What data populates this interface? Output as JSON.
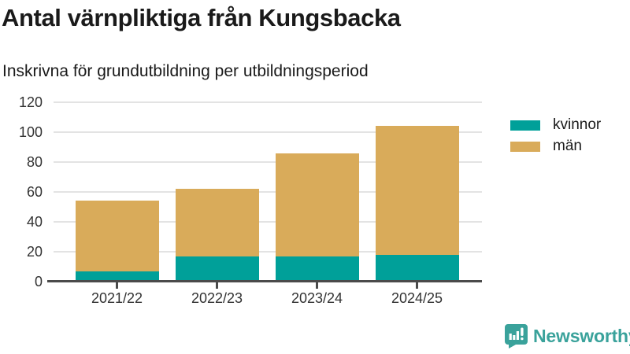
{
  "title": "Antal värnpliktiga från Kungsbacka",
  "subtitle": "Inskrivna för grundutbildning per utbildningsperiod",
  "chart_data": {
    "type": "bar",
    "stacked": true,
    "title": "Antal värnpliktiga från Kungsbacka",
    "subtitle": "Inskrivna för grundutbildning per utbildningsperiod",
    "categories": [
      "2021/22",
      "2022/23",
      "2023/24",
      "2024/25"
    ],
    "series": [
      {
        "name": "kvinnor",
        "color": "#00a099",
        "values": [
          7,
          17,
          17,
          18
        ]
      },
      {
        "name": "män",
        "color": "#d9ab5a",
        "values": [
          47,
          45,
          69,
          86
        ]
      }
    ],
    "stack_totals": [
      54,
      62,
      86,
      104
    ],
    "xlabel": "",
    "ylabel": "",
    "ylim": [
      0,
      120
    ],
    "yticks": [
      0,
      20,
      40,
      60,
      80,
      100,
      120
    ],
    "grid": true,
    "legend_position": "right-top"
  },
  "legend": {
    "items": [
      {
        "label": "kvinnor",
        "color": "#00a099"
      },
      {
        "label": "män",
        "color": "#d9ab5a"
      }
    ]
  },
  "branding": {
    "logo_text": "Newsworthy",
    "logo_icon": "bar-chart-speech-bubble-icon",
    "logo_color": "#3aa29b"
  },
  "colors": {
    "kvinnor": "#00a099",
    "man": "#d9ab5a",
    "grid": "#e3e3e3",
    "axis": "#4a4a4a",
    "title_text": "#1a1a1a",
    "tick_text": "#333333",
    "brand": "#3aa29b",
    "background": "#ffffff"
  }
}
